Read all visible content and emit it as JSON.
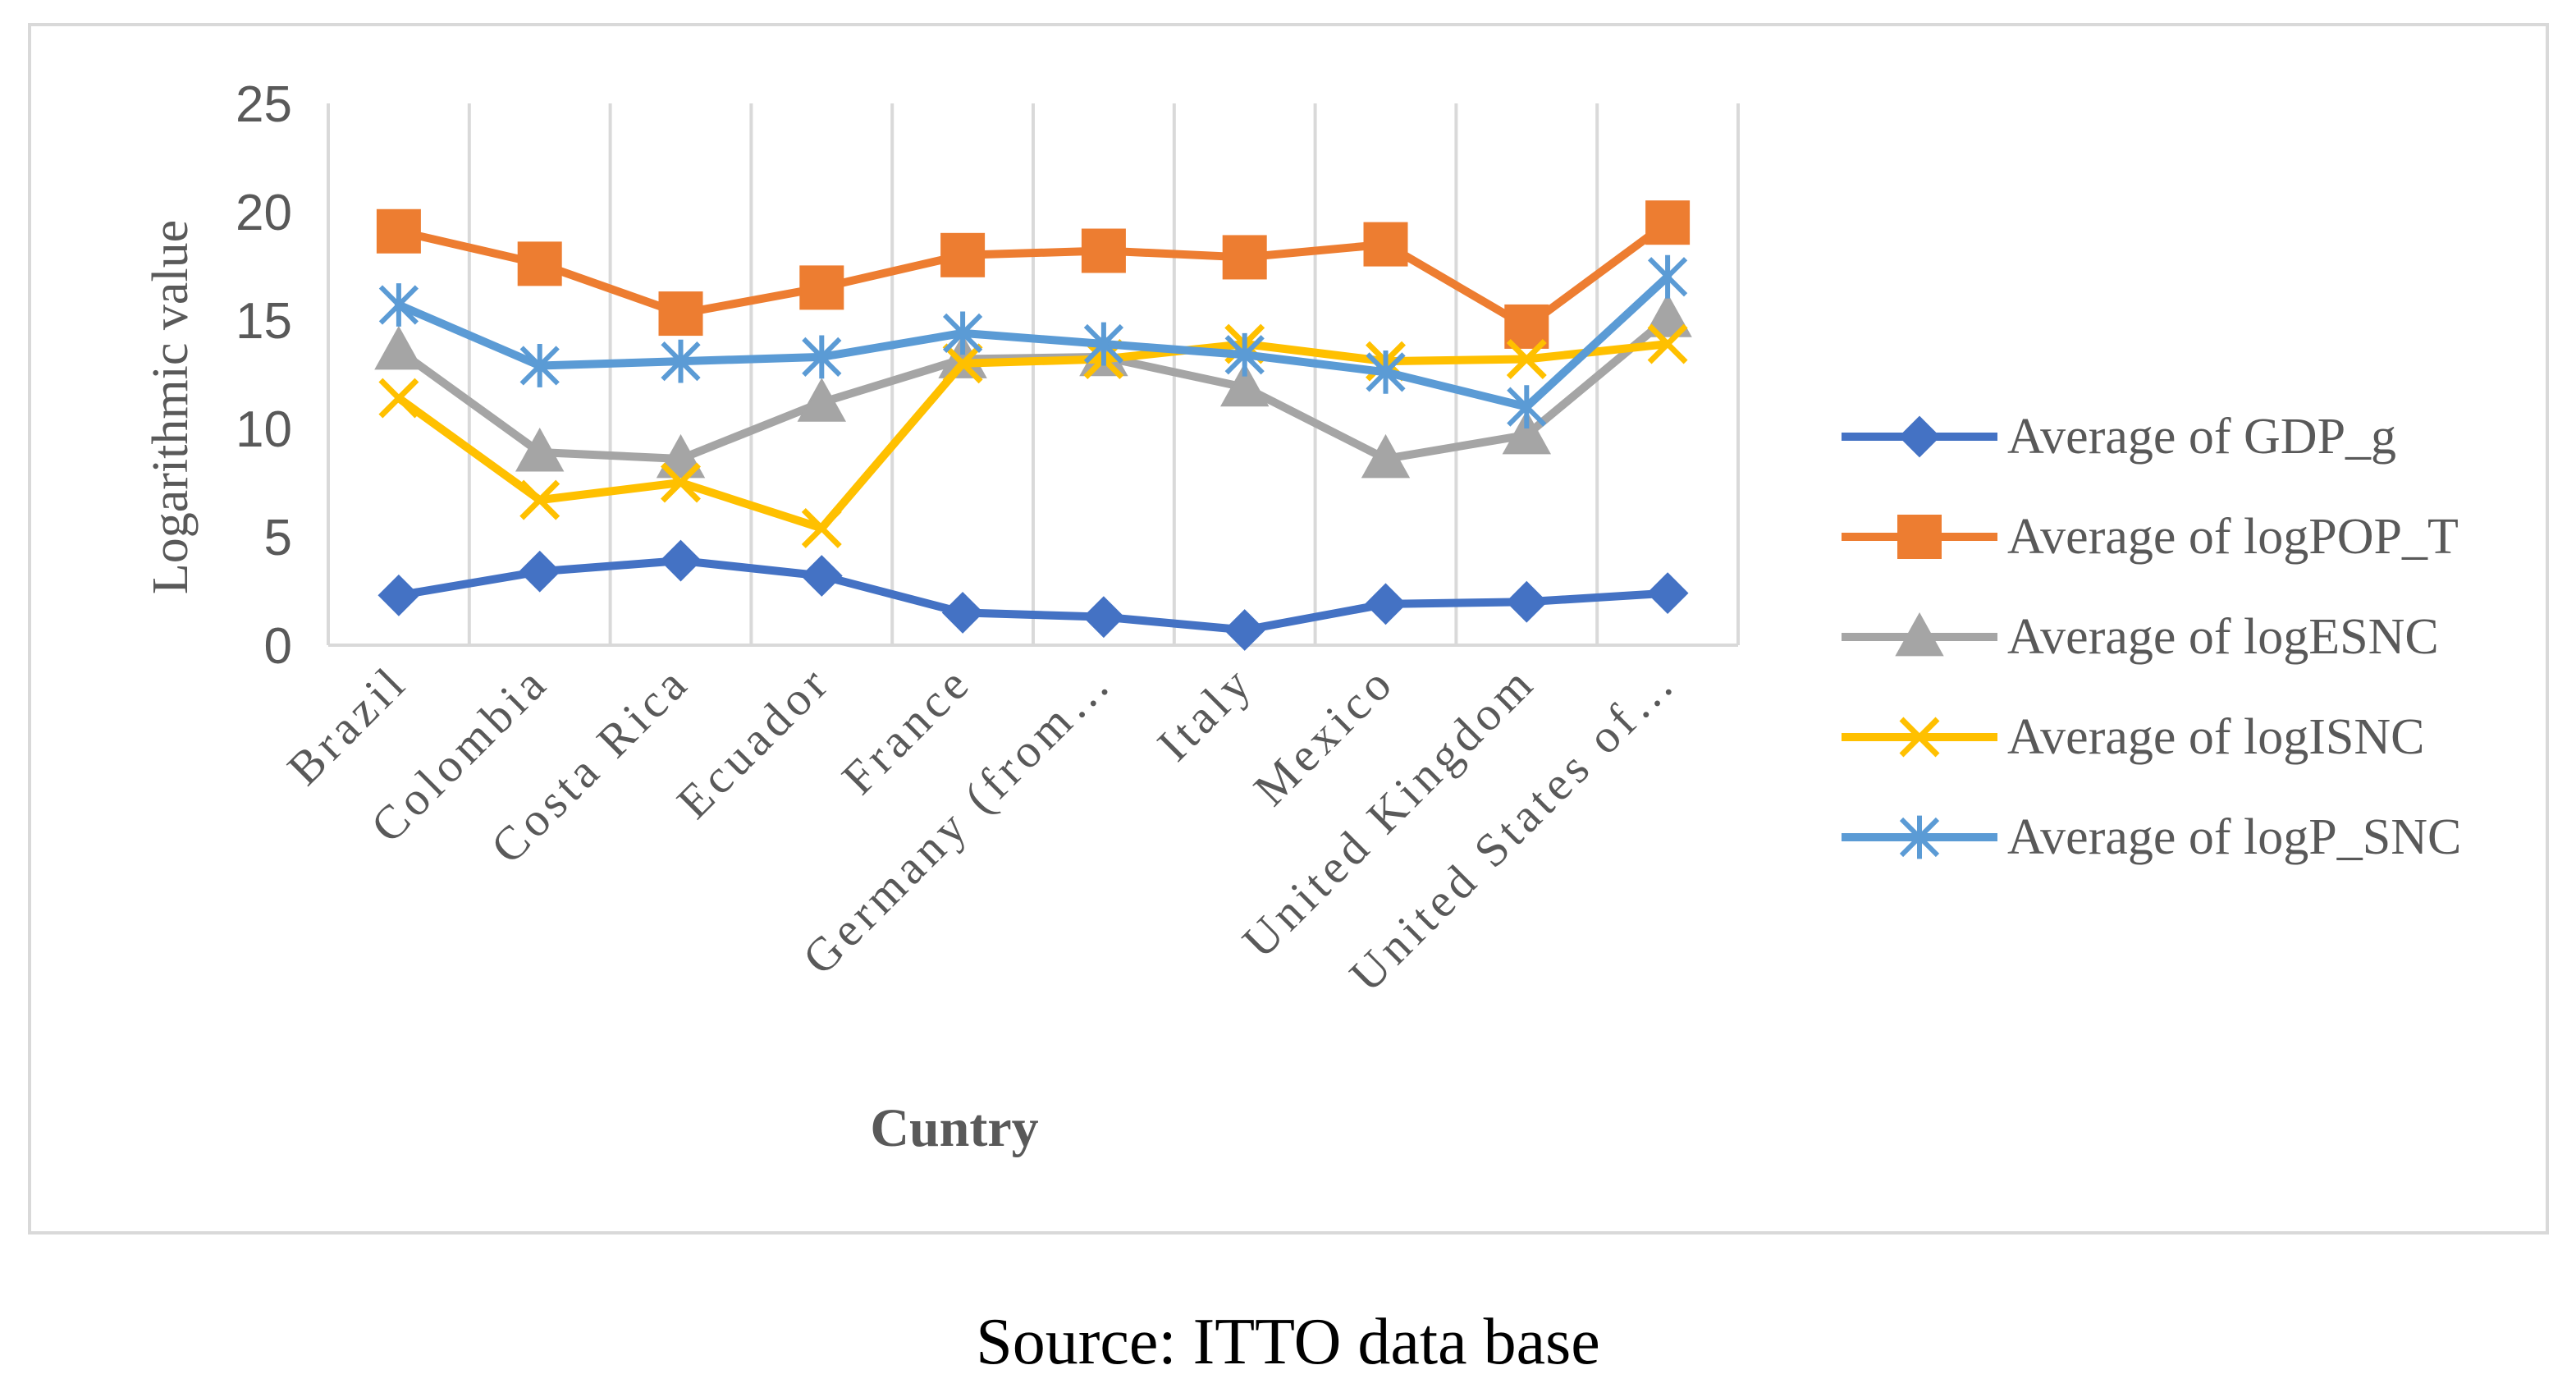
{
  "caption": "Source: ITTO data base",
  "chart_data": {
    "type": "line",
    "title": "",
    "xlabel": "Cuntry",
    "ylabel": "Logarithmic value",
    "ylim": [
      0,
      25
    ],
    "yticks": [
      0,
      5,
      10,
      15,
      20,
      25
    ],
    "grid": "vertical",
    "legend_position": "right",
    "categories": [
      "Brazil",
      "Colombia",
      "Costa Rica",
      "Ecuador",
      "France",
      "Germany (from…",
      "Italy",
      "Mexico",
      "United Kingdom",
      "United States of…"
    ],
    "series": [
      {
        "name": "Average of GDP_g",
        "color": "#4472c4",
        "marker": "diamond",
        "values": [
          2.3,
          3.4,
          3.9,
          3.2,
          1.5,
          1.3,
          0.7,
          1.9,
          2.0,
          2.4
        ]
      },
      {
        "name": "Average of logPOP_T",
        "color": "#ed7d31",
        "marker": "square",
        "values": [
          19.1,
          17.6,
          15.3,
          16.5,
          18.0,
          18.2,
          17.9,
          18.5,
          14.7,
          19.5
        ]
      },
      {
        "name": "Average of logESNC",
        "color": "#a5a5a5",
        "marker": "triangle",
        "values": [
          13.6,
          8.9,
          8.6,
          11.2,
          13.2,
          13.3,
          11.9,
          8.6,
          9.7,
          15.1
        ]
      },
      {
        "name": "Average of logISNC",
        "color": "#ffc000",
        "marker": "x",
        "values": [
          11.4,
          6.7,
          7.5,
          5.4,
          13.0,
          13.2,
          13.9,
          13.1,
          13.2,
          13.9
        ]
      },
      {
        "name": "Average of logP_SNC",
        "color": "#5b9bd5",
        "marker": "star",
        "values": [
          15.7,
          12.9,
          13.1,
          13.3,
          14.4,
          13.9,
          13.4,
          12.6,
          11.0,
          17.0
        ]
      }
    ]
  }
}
